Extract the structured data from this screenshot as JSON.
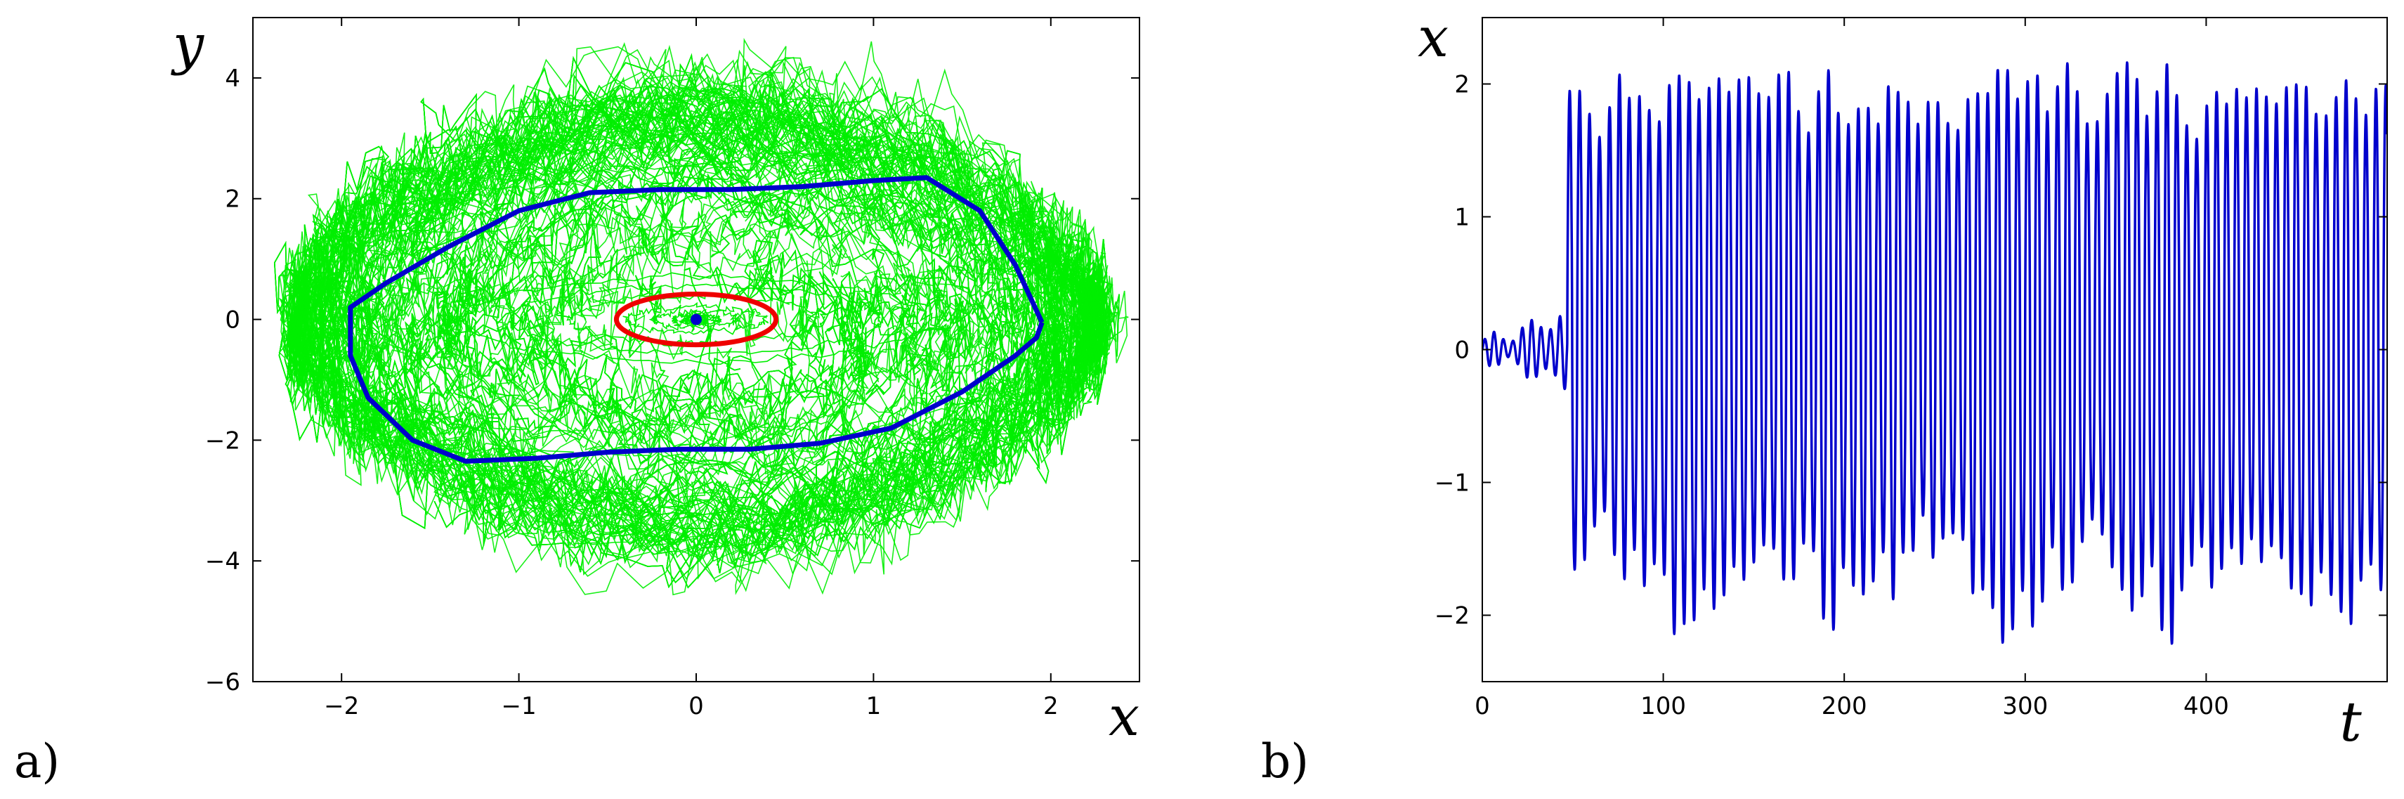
{
  "panels": {
    "a": {
      "label": "a)"
    },
    "b": {
      "label": "b)"
    }
  },
  "chart_data": [
    {
      "type": "line",
      "panel": "a",
      "xlabel": "x",
      "ylabel": "y",
      "xlim": [
        -2.5,
        2.5
      ],
      "ylim": [
        -6,
        5
      ],
      "xticks": [
        -2,
        -1,
        0,
        1,
        2
      ],
      "yticks": [
        -6,
        -4,
        -2,
        0,
        2,
        4
      ],
      "xtick_labels": [
        "−2",
        "−1",
        "0",
        "1",
        "2"
      ],
      "ytick_labels": [
        "−6",
        "−4",
        "−2",
        "0",
        "2",
        "4"
      ],
      "grid": false,
      "series": [
        {
          "role": "stochastic trajectories",
          "color": "#00ee00",
          "values": "many noisy closed orbits (approx. 120) spiraling from near the origin outward, x range about -2.2 to 2.2, y range about -5.5 to 4.5"
        },
        {
          "role": "stable limit cycle",
          "color": "#0000cc",
          "points": [
            [
              1.95,
              -0.05
            ],
            [
              1.8,
              0.9
            ],
            [
              1.6,
              1.8
            ],
            [
              1.3,
              2.35
            ],
            [
              1.0,
              2.3
            ],
            [
              0.6,
              2.2
            ],
            [
              0.2,
              2.15
            ],
            [
              -0.2,
              2.15
            ],
            [
              -0.6,
              2.1
            ],
            [
              -1.0,
              1.8
            ],
            [
              -1.4,
              1.2
            ],
            [
              -1.75,
              0.6
            ],
            [
              -1.95,
              0.2
            ],
            [
              -1.95,
              -0.6
            ],
            [
              -1.85,
              -1.3
            ],
            [
              -1.6,
              -2.0
            ],
            [
              -1.3,
              -2.35
            ],
            [
              -0.9,
              -2.3
            ],
            [
              -0.5,
              -2.2
            ],
            [
              -0.1,
              -2.15
            ],
            [
              0.3,
              -2.15
            ],
            [
              0.7,
              -2.05
            ],
            [
              1.1,
              -1.8
            ],
            [
              1.5,
              -1.2
            ],
            [
              1.8,
              -0.6
            ],
            [
              1.92,
              -0.3
            ],
            [
              1.95,
              -0.05
            ]
          ]
        },
        {
          "role": "unstable limit cycle",
          "color": "#ee0000",
          "shape": "ellipse",
          "center": [
            0,
            0
          ],
          "semi_axes": [
            0.45,
            0.42
          ]
        },
        {
          "role": "stable equilibrium",
          "color": "#0000cc",
          "points": [
            [
              0,
              0
            ]
          ]
        }
      ]
    },
    {
      "type": "line",
      "panel": "b",
      "xlabel": "t",
      "ylabel": "x",
      "xlim": [
        0,
        500
      ],
      "ylim": [
        -2.5,
        2.5
      ],
      "xticks": [
        0,
        100,
        200,
        300,
        400
      ],
      "yticks": [
        -2,
        -1,
        0,
        1,
        2
      ],
      "xtick_labels": [
        "0",
        "100",
        "200",
        "300",
        "400"
      ],
      "ytick_labels": [
        "−2",
        "−1",
        "0",
        "1",
        "2"
      ],
      "grid": false,
      "series": [
        {
          "role": "time series",
          "color": "#0000cc",
          "values": "small oscillations around 0 (amplitude < 0.3) for t < 47, then large oscillations with amplitude about 1.7-2.2 and period about 5.5 up to t = 500"
        }
      ]
    }
  ]
}
